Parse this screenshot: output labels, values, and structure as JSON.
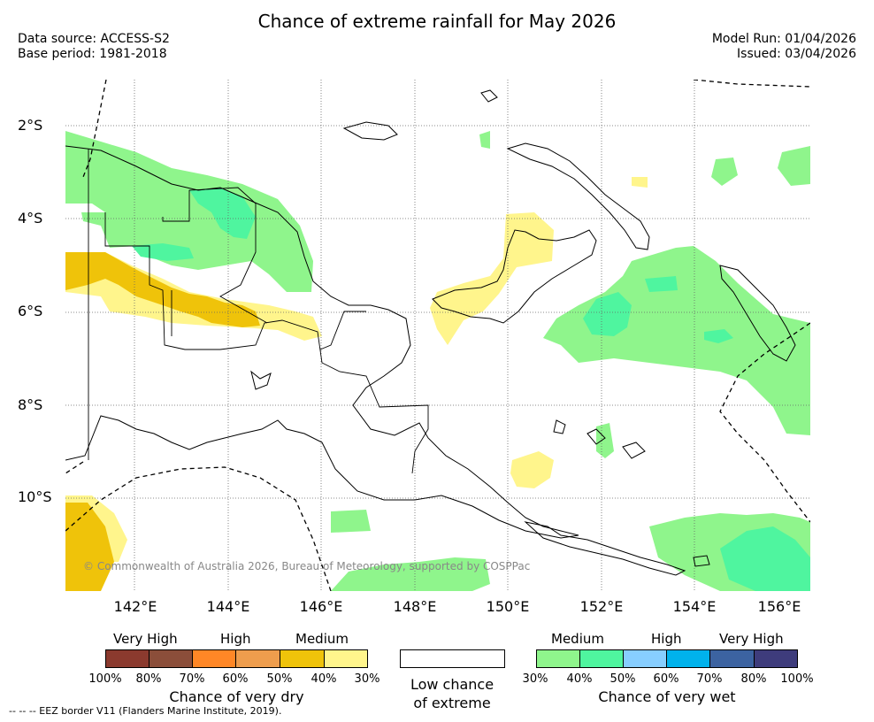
{
  "title": "Chance of extreme rainfall for May 2026",
  "meta": {
    "data_source": "Data source: ACCESS-S2",
    "base_period": "Base period: 1981-2018",
    "model_run": "Model Run: 01/04/2026",
    "issued": "Issued: 03/04/2026"
  },
  "map": {
    "lat_labels": [
      "2°S",
      "4°S",
      "6°S",
      "8°S",
      "10°S"
    ],
    "lon_labels": [
      "142°E",
      "144°E",
      "146°E",
      "148°E",
      "150°E",
      "152°E",
      "154°E",
      "156°E"
    ],
    "copyright": "© Commonwealth of Australia 2026, Bureau of Meteorology, supported by COSPPac"
  },
  "legend": {
    "dry": {
      "levels": [
        "Very High",
        "High",
        "Medium"
      ],
      "pcts": [
        "100%",
        "80%",
        "70%",
        "60%",
        "50%",
        "40%",
        "30%"
      ],
      "colors": [
        "#8b3a2e",
        "#8b4e3a",
        "#ff8726",
        "#ee9d4d",
        "#efc30a",
        "#fff58c"
      ],
      "title": "Chance of very dry"
    },
    "low": {
      "line1": "Low chance",
      "line2": "of extreme"
    },
    "wet": {
      "levels": [
        "Medium",
        "High",
        "Very High"
      ],
      "pcts": [
        "30%",
        "40%",
        "50%",
        "60%",
        "70%",
        "80%",
        "100%"
      ],
      "colors": [
        "#8ff58c",
        "#4ff59f",
        "#87ceff",
        "#00b2ec",
        "#3c63a1",
        "#3e3c7c"
      ],
      "title": "Chance of very wet"
    }
  },
  "eez_note": "-- -- -- EEZ border V11 (Flanders Marine Institute, 2019)."
}
